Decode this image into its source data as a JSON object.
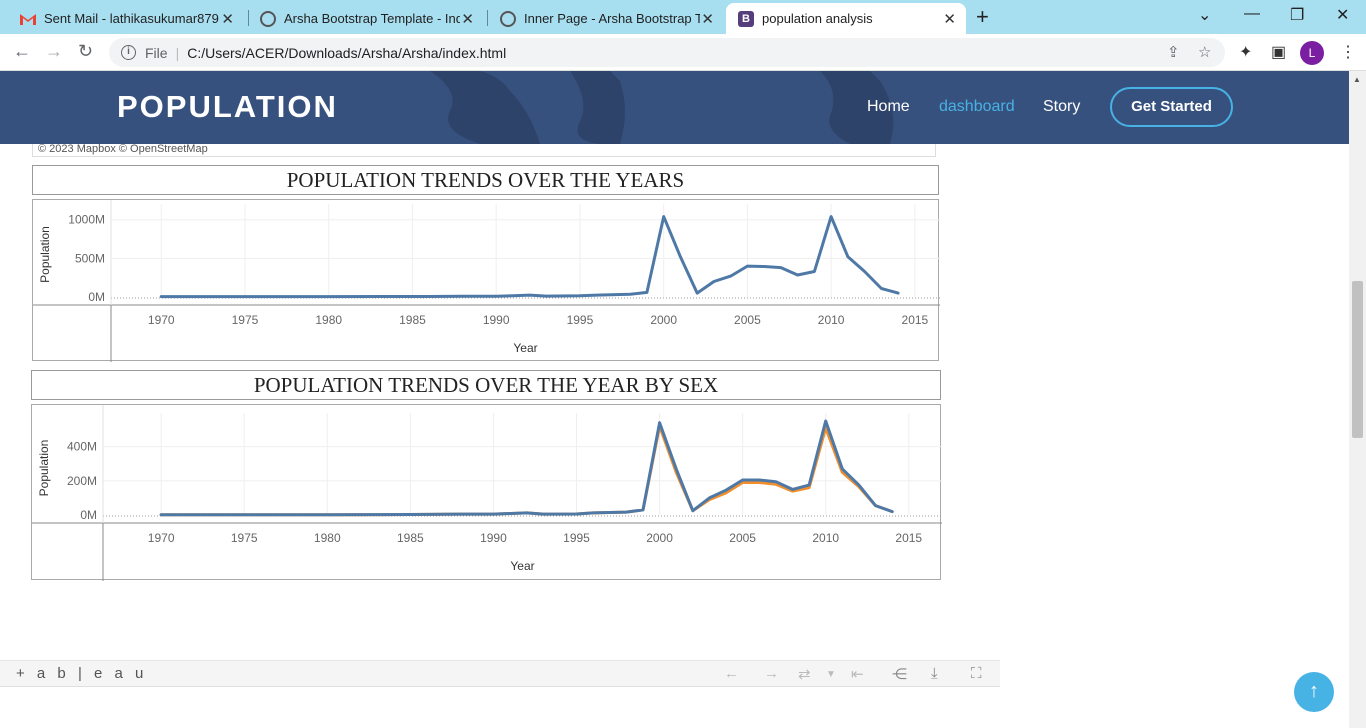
{
  "browser": {
    "tabs": [
      {
        "title": "Sent Mail - lathikasukumar879@",
        "icon": "gmail-icon"
      },
      {
        "title": "Arsha Bootstrap Template - Index",
        "icon": "globe-icon"
      },
      {
        "title": "Inner Page - Arsha Bootstrap Tem",
        "icon": "globe-icon"
      },
      {
        "title": "population analysis",
        "icon": "bootstrap-icon"
      }
    ],
    "scheme": "File",
    "url": "C:/Users/ACER/Downloads/Arsha/Arsha/index.html",
    "profile_initial": "L"
  },
  "site": {
    "logo": "POPULATION",
    "nav": [
      "Home",
      "dashboard",
      "Story"
    ],
    "cta": "Get Started",
    "accent": "#47b2e4",
    "header_bg": "#37517e"
  },
  "map_attribution": "© 2023 Mapbox  © OpenStreetMap",
  "tableau": {
    "logo": "+ a b | e a u"
  },
  "chart_data": [
    {
      "type": "line",
      "title": "POPULATION TRENDS OVER THE YEARS",
      "xlabel": "Year",
      "ylabel": "Population",
      "xticks": [
        "1970",
        "1975",
        "1980",
        "1985",
        "1990",
        "1995",
        "2000",
        "2005",
        "2010",
        "2015"
      ],
      "yticks": [
        "0M",
        "500M",
        "1000M"
      ],
      "ylim": [
        0,
        1100
      ],
      "xlim": [
        1967,
        2016.5
      ],
      "series": [
        {
          "color": "#4e79a7",
          "x": [
            1970,
            1975,
            1980,
            1984,
            1986,
            1987,
            1988,
            1989,
            1990,
            1991,
            1992,
            1993,
            1995,
            1996,
            1998,
            1999,
            2000,
            2001,
            2002,
            2003,
            2004,
            2005,
            2006,
            2007,
            2008,
            2009,
            2010,
            2011,
            2012,
            2013,
            2014
          ],
          "y": [
            5,
            5,
            5,
            6,
            7,
            8,
            10,
            9,
            10,
            15,
            25,
            12,
            15,
            25,
            35,
            60,
            1040,
            520,
            50,
            200,
            270,
            400,
            395,
            380,
            285,
            330,
            1040,
            520,
            330,
            110,
            50
          ]
        }
      ]
    },
    {
      "type": "line",
      "title": "POPULATION TRENDS OVER THE YEAR BY SEX",
      "xlabel": "Year",
      "ylabel": "Population",
      "xticks": [
        "1970",
        "1975",
        "1980",
        "1985",
        "1990",
        "1995",
        "2000",
        "2005",
        "2010",
        "2015"
      ],
      "yticks": [
        "0M",
        "200M",
        "400M"
      ],
      "ylim": [
        0,
        550
      ],
      "xlim": [
        1966.5,
        2017.0
      ],
      "series": [
        {
          "color": "#f28e2b",
          "x": [
            1970,
            1975,
            1980,
            1985,
            1988,
            1990,
            1992,
            1993,
            1995,
            1996,
            1998,
            1999,
            2000,
            2001,
            2002,
            2003,
            2004,
            2005,
            2006,
            2007,
            2008,
            2009,
            2010,
            2011,
            2012,
            2013,
            2014
          ],
          "y": [
            2,
            2,
            2,
            3,
            5,
            5,
            12,
            5,
            6,
            12,
            17,
            30,
            520,
            250,
            25,
            90,
            130,
            190,
            190,
            180,
            140,
            160,
            510,
            250,
            165,
            55,
            20
          ]
        },
        {
          "color": "#4e79a7",
          "x": [
            1970,
            1975,
            1980,
            1985,
            1988,
            1990,
            1992,
            1993,
            1995,
            1996,
            1998,
            1999,
            2000,
            2001,
            2002,
            2003,
            2004,
            2005,
            2006,
            2007,
            2008,
            2009,
            2010,
            2011,
            2012,
            2013,
            2014
          ],
          "y": [
            2,
            2,
            2,
            3,
            5,
            5,
            12,
            5,
            6,
            12,
            17,
            30,
            540,
            270,
            25,
            100,
            145,
            205,
            205,
            195,
            150,
            175,
            550,
            270,
            175,
            55,
            20
          ]
        }
      ]
    }
  ]
}
